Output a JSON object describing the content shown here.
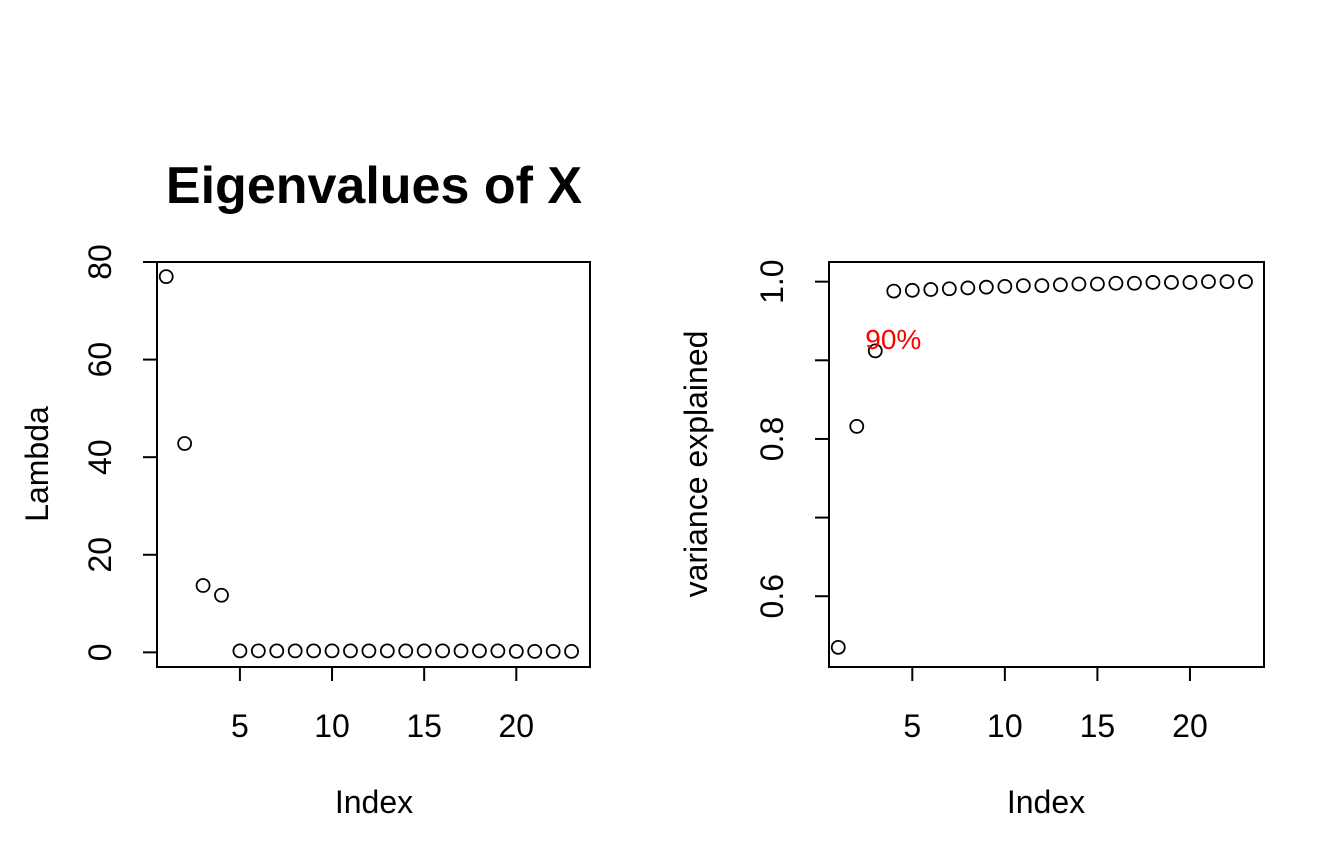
{
  "chart_data": [
    {
      "type": "scatter",
      "title": "Eigenvalues of X",
      "xlabel": "Index",
      "ylabel": "Lambda",
      "xlim": [
        0.5,
        24
      ],
      "ylim": [
        -3,
        80
      ],
      "xticks": [
        5,
        10,
        15,
        20
      ],
      "xtick_labels": [
        "5",
        "10",
        "15",
        "20"
      ],
      "yticks": [
        0,
        20,
        40,
        60,
        80
      ],
      "ytick_labels": [
        "0",
        "20",
        "40",
        "60",
        "80"
      ],
      "grid": false,
      "x": [
        1,
        2,
        3,
        4,
        5,
        6,
        7,
        8,
        9,
        10,
        11,
        12,
        13,
        14,
        15,
        16,
        17,
        18,
        19,
        20,
        21,
        22,
        23
      ],
      "y": [
        77,
        42.8,
        13.7,
        11.7,
        0.3,
        0.3,
        0.3,
        0.3,
        0.3,
        0.3,
        0.3,
        0.3,
        0.3,
        0.3,
        0.3,
        0.3,
        0.3,
        0.3,
        0.3,
        0.2,
        0.2,
        0.2,
        0.2
      ]
    },
    {
      "type": "scatter",
      "title": "",
      "xlabel": "Index",
      "ylabel": "variance explained",
      "xlim": [
        0.5,
        24
      ],
      "ylim": [
        0.51,
        1.025
      ],
      "xticks": [
        5,
        10,
        15,
        20
      ],
      "xtick_labels": [
        "5",
        "10",
        "15",
        "20"
      ],
      "yticks": [
        0.6,
        0.7,
        0.8,
        0.9,
        1.0
      ],
      "ytick_labels": [
        "0.6",
        "",
        "0.8",
        "",
        "1.0"
      ],
      "grid": false,
      "x": [
        1,
        2,
        3,
        4,
        5,
        6,
        7,
        8,
        9,
        10,
        11,
        12,
        13,
        14,
        15,
        16,
        17,
        18,
        19,
        20,
        21,
        22,
        23
      ],
      "y": [
        0.535,
        0.816,
        0.912,
        0.988,
        0.989,
        0.99,
        0.991,
        0.992,
        0.993,
        0.994,
        0.995,
        0.995,
        0.996,
        0.997,
        0.997,
        0.998,
        0.998,
        0.999,
        0.999,
        0.999,
        1.0,
        1.0,
        1.0
      ],
      "annotations": [
        {
          "text": "90%",
          "x": 3,
          "y": 0.912,
          "color": "#ff0000"
        }
      ]
    }
  ]
}
